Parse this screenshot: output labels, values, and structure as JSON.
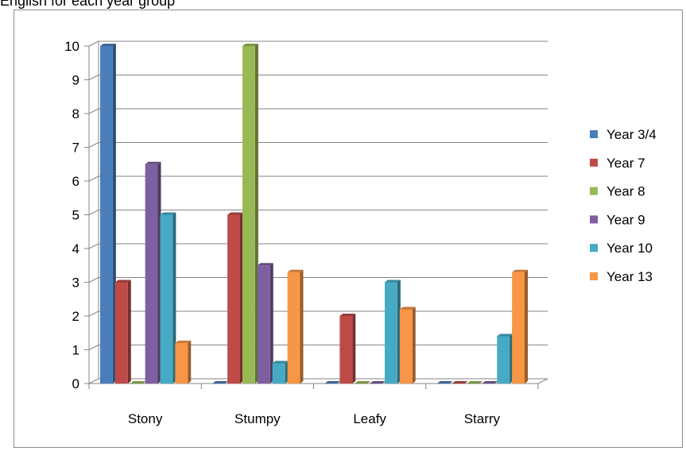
{
  "title": "English for each year group",
  "chart_data": {
    "type": "bar",
    "title": "English for each year group",
    "categories": [
      "Stony",
      "Stumpy",
      "Leafy",
      "Starry"
    ],
    "series": [
      {
        "name": "Year 3/4",
        "color": "#4a7ebb",
        "values": [
          10,
          0,
          0,
          0
        ]
      },
      {
        "name": "Year 7",
        "color": "#be4b48",
        "values": [
          3,
          5,
          2,
          0
        ]
      },
      {
        "name": "Year 8",
        "color": "#98b954",
        "values": [
          0,
          10,
          0,
          0
        ]
      },
      {
        "name": "Year 9",
        "color": "#7d60a0",
        "values": [
          6.5,
          3.5,
          0,
          0
        ]
      },
      {
        "name": "Year 10",
        "color": "#46aac5",
        "values": [
          5,
          0.6,
          3,
          1.4
        ]
      },
      {
        "name": "Year 13",
        "color": "#f79646",
        "values": [
          1.2,
          3.3,
          2.2,
          3.3
        ]
      }
    ],
    "yticks": [
      "0",
      "1",
      "2",
      "3",
      "4",
      "5",
      "6",
      "7",
      "8",
      "9",
      "10"
    ],
    "ylim": [
      0,
      10
    ],
    "grid": true,
    "legend": "right"
  }
}
